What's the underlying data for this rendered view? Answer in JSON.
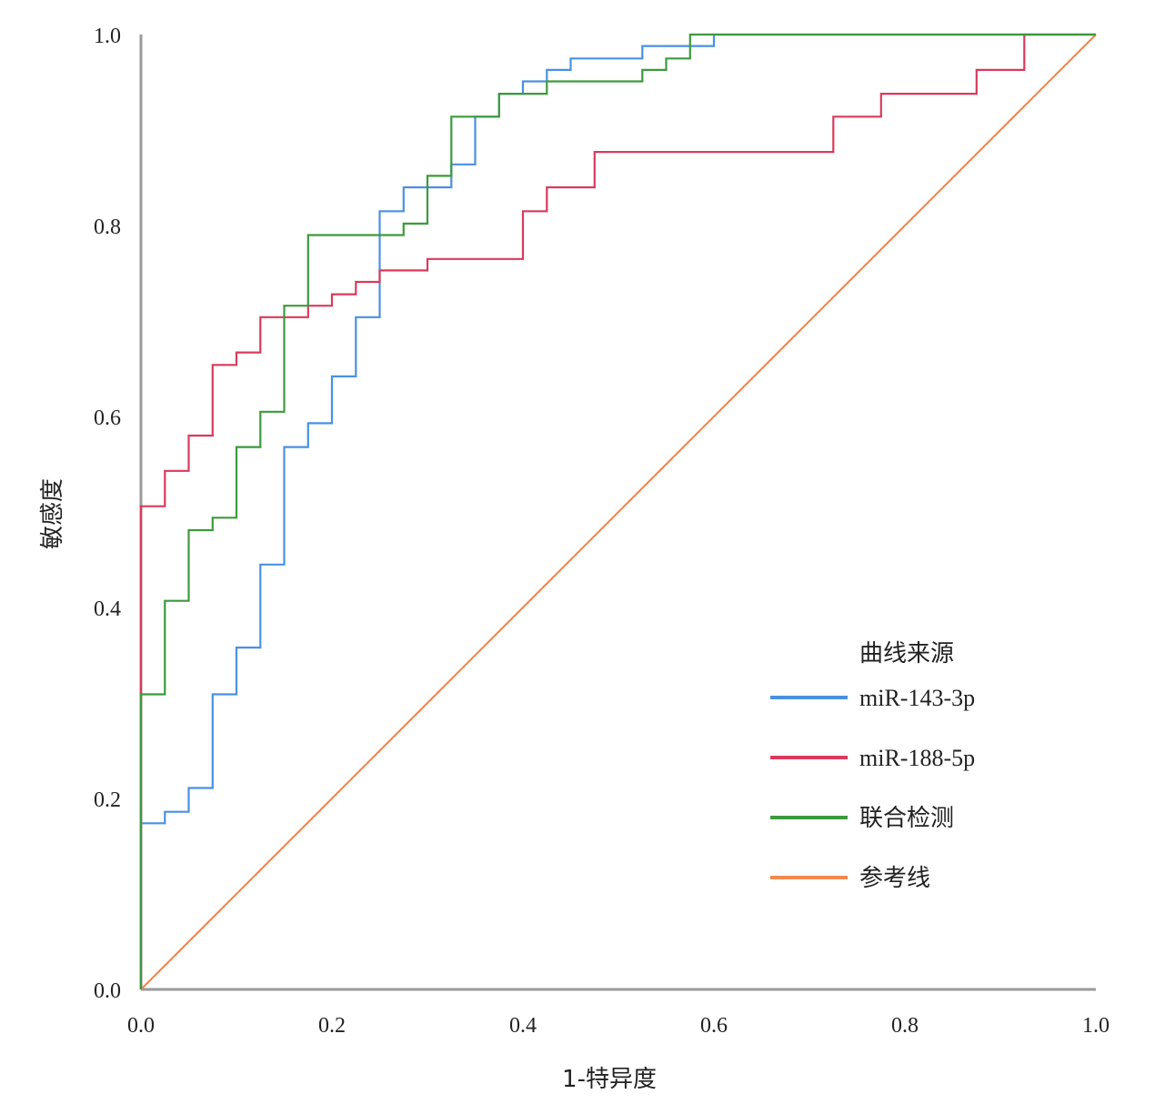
{
  "chart_data": {
    "type": "line",
    "title": "",
    "xlabel": "1-特异度",
    "ylabel": "敏感度",
    "xlim": [
      0,
      1
    ],
    "ylim": [
      0,
      1
    ],
    "x_ticks": [
      "0.0",
      "0.2",
      "0.4",
      "0.6",
      "0.8",
      "1.0"
    ],
    "y_ticks": [
      "0.0",
      "0.2",
      "0.4",
      "0.6",
      "0.8",
      "1.0"
    ],
    "legend": {
      "title": "曲线来源",
      "position": "bottom-right"
    },
    "series": [
      {
        "name": "miR-143-3p",
        "color": "#4a90e2",
        "points": [
          [
            0,
            0
          ],
          [
            0,
            0.174
          ],
          [
            0.025,
            0.174
          ],
          [
            0.025,
            0.186
          ],
          [
            0.05,
            0.186
          ],
          [
            0.05,
            0.211
          ],
          [
            0.075,
            0.211
          ],
          [
            0.075,
            0.309
          ],
          [
            0.1,
            0.309
          ],
          [
            0.1,
            0.358
          ],
          [
            0.125,
            0.358
          ],
          [
            0.125,
            0.445
          ],
          [
            0.15,
            0.445
          ],
          [
            0.15,
            0.568
          ],
          [
            0.175,
            0.568
          ],
          [
            0.175,
            0.593
          ],
          [
            0.2,
            0.593
          ],
          [
            0.2,
            0.642
          ],
          [
            0.225,
            0.642
          ],
          [
            0.225,
            0.704
          ],
          [
            0.25,
            0.704
          ],
          [
            0.25,
            0.815
          ],
          [
            0.275,
            0.815
          ],
          [
            0.275,
            0.84
          ],
          [
            0.325,
            0.84
          ],
          [
            0.325,
            0.864
          ],
          [
            0.35,
            0.864
          ],
          [
            0.35,
            0.914
          ],
          [
            0.375,
            0.914
          ],
          [
            0.375,
            0.938
          ],
          [
            0.4,
            0.938
          ],
          [
            0.4,
            0.951
          ],
          [
            0.425,
            0.951
          ],
          [
            0.425,
            0.963
          ],
          [
            0.45,
            0.963
          ],
          [
            0.45,
            0.975
          ],
          [
            0.525,
            0.975
          ],
          [
            0.525,
            0.988
          ],
          [
            0.6,
            0.988
          ],
          [
            0.6,
            1.0
          ],
          [
            1.0,
            1.0
          ]
        ]
      },
      {
        "name": "miR-188-5p",
        "color": "#d93a5c",
        "points": [
          [
            0,
            0
          ],
          [
            0,
            0.506
          ],
          [
            0.025,
            0.506
          ],
          [
            0.025,
            0.543
          ],
          [
            0.05,
            0.543
          ],
          [
            0.05,
            0.58
          ],
          [
            0.075,
            0.58
          ],
          [
            0.075,
            0.654
          ],
          [
            0.1,
            0.654
          ],
          [
            0.1,
            0.667
          ],
          [
            0.125,
            0.667
          ],
          [
            0.125,
            0.704
          ],
          [
            0.175,
            0.704
          ],
          [
            0.175,
            0.716
          ],
          [
            0.2,
            0.716
          ],
          [
            0.2,
            0.728
          ],
          [
            0.225,
            0.728
          ],
          [
            0.225,
            0.741
          ],
          [
            0.25,
            0.741
          ],
          [
            0.25,
            0.753
          ],
          [
            0.3,
            0.753
          ],
          [
            0.3,
            0.765
          ],
          [
            0.4,
            0.765
          ],
          [
            0.4,
            0.815
          ],
          [
            0.425,
            0.815
          ],
          [
            0.425,
            0.84
          ],
          [
            0.475,
            0.84
          ],
          [
            0.475,
            0.877
          ],
          [
            0.725,
            0.877
          ],
          [
            0.725,
            0.914
          ],
          [
            0.775,
            0.914
          ],
          [
            0.775,
            0.938
          ],
          [
            0.875,
            0.938
          ],
          [
            0.875,
            0.963
          ],
          [
            0.925,
            0.963
          ],
          [
            0.925,
            1.0
          ],
          [
            1.0,
            1.0
          ]
        ]
      },
      {
        "name": "联合检测",
        "color": "#3c9a3c",
        "points": [
          [
            0,
            0
          ],
          [
            0,
            0.309
          ],
          [
            0.025,
            0.309
          ],
          [
            0.025,
            0.407
          ],
          [
            0.05,
            0.407
          ],
          [
            0.05,
            0.481
          ],
          [
            0.075,
            0.481
          ],
          [
            0.075,
            0.494
          ],
          [
            0.1,
            0.494
          ],
          [
            0.1,
            0.568
          ],
          [
            0.125,
            0.568
          ],
          [
            0.125,
            0.605
          ],
          [
            0.15,
            0.605
          ],
          [
            0.15,
            0.716
          ],
          [
            0.175,
            0.716
          ],
          [
            0.175,
            0.79
          ],
          [
            0.275,
            0.79
          ],
          [
            0.275,
            0.802
          ],
          [
            0.3,
            0.802
          ],
          [
            0.3,
            0.852
          ],
          [
            0.325,
            0.852
          ],
          [
            0.325,
            0.914
          ],
          [
            0.375,
            0.914
          ],
          [
            0.375,
            0.938
          ],
          [
            0.425,
            0.938
          ],
          [
            0.425,
            0.951
          ],
          [
            0.525,
            0.951
          ],
          [
            0.525,
            0.963
          ],
          [
            0.55,
            0.963
          ],
          [
            0.55,
            0.975
          ],
          [
            0.575,
            0.975
          ],
          [
            0.575,
            1.0
          ],
          [
            1.0,
            1.0
          ]
        ]
      },
      {
        "name": "参考线",
        "color": "#f08a50",
        "points": [
          [
            0,
            0
          ],
          [
            1,
            1
          ]
        ]
      }
    ]
  }
}
